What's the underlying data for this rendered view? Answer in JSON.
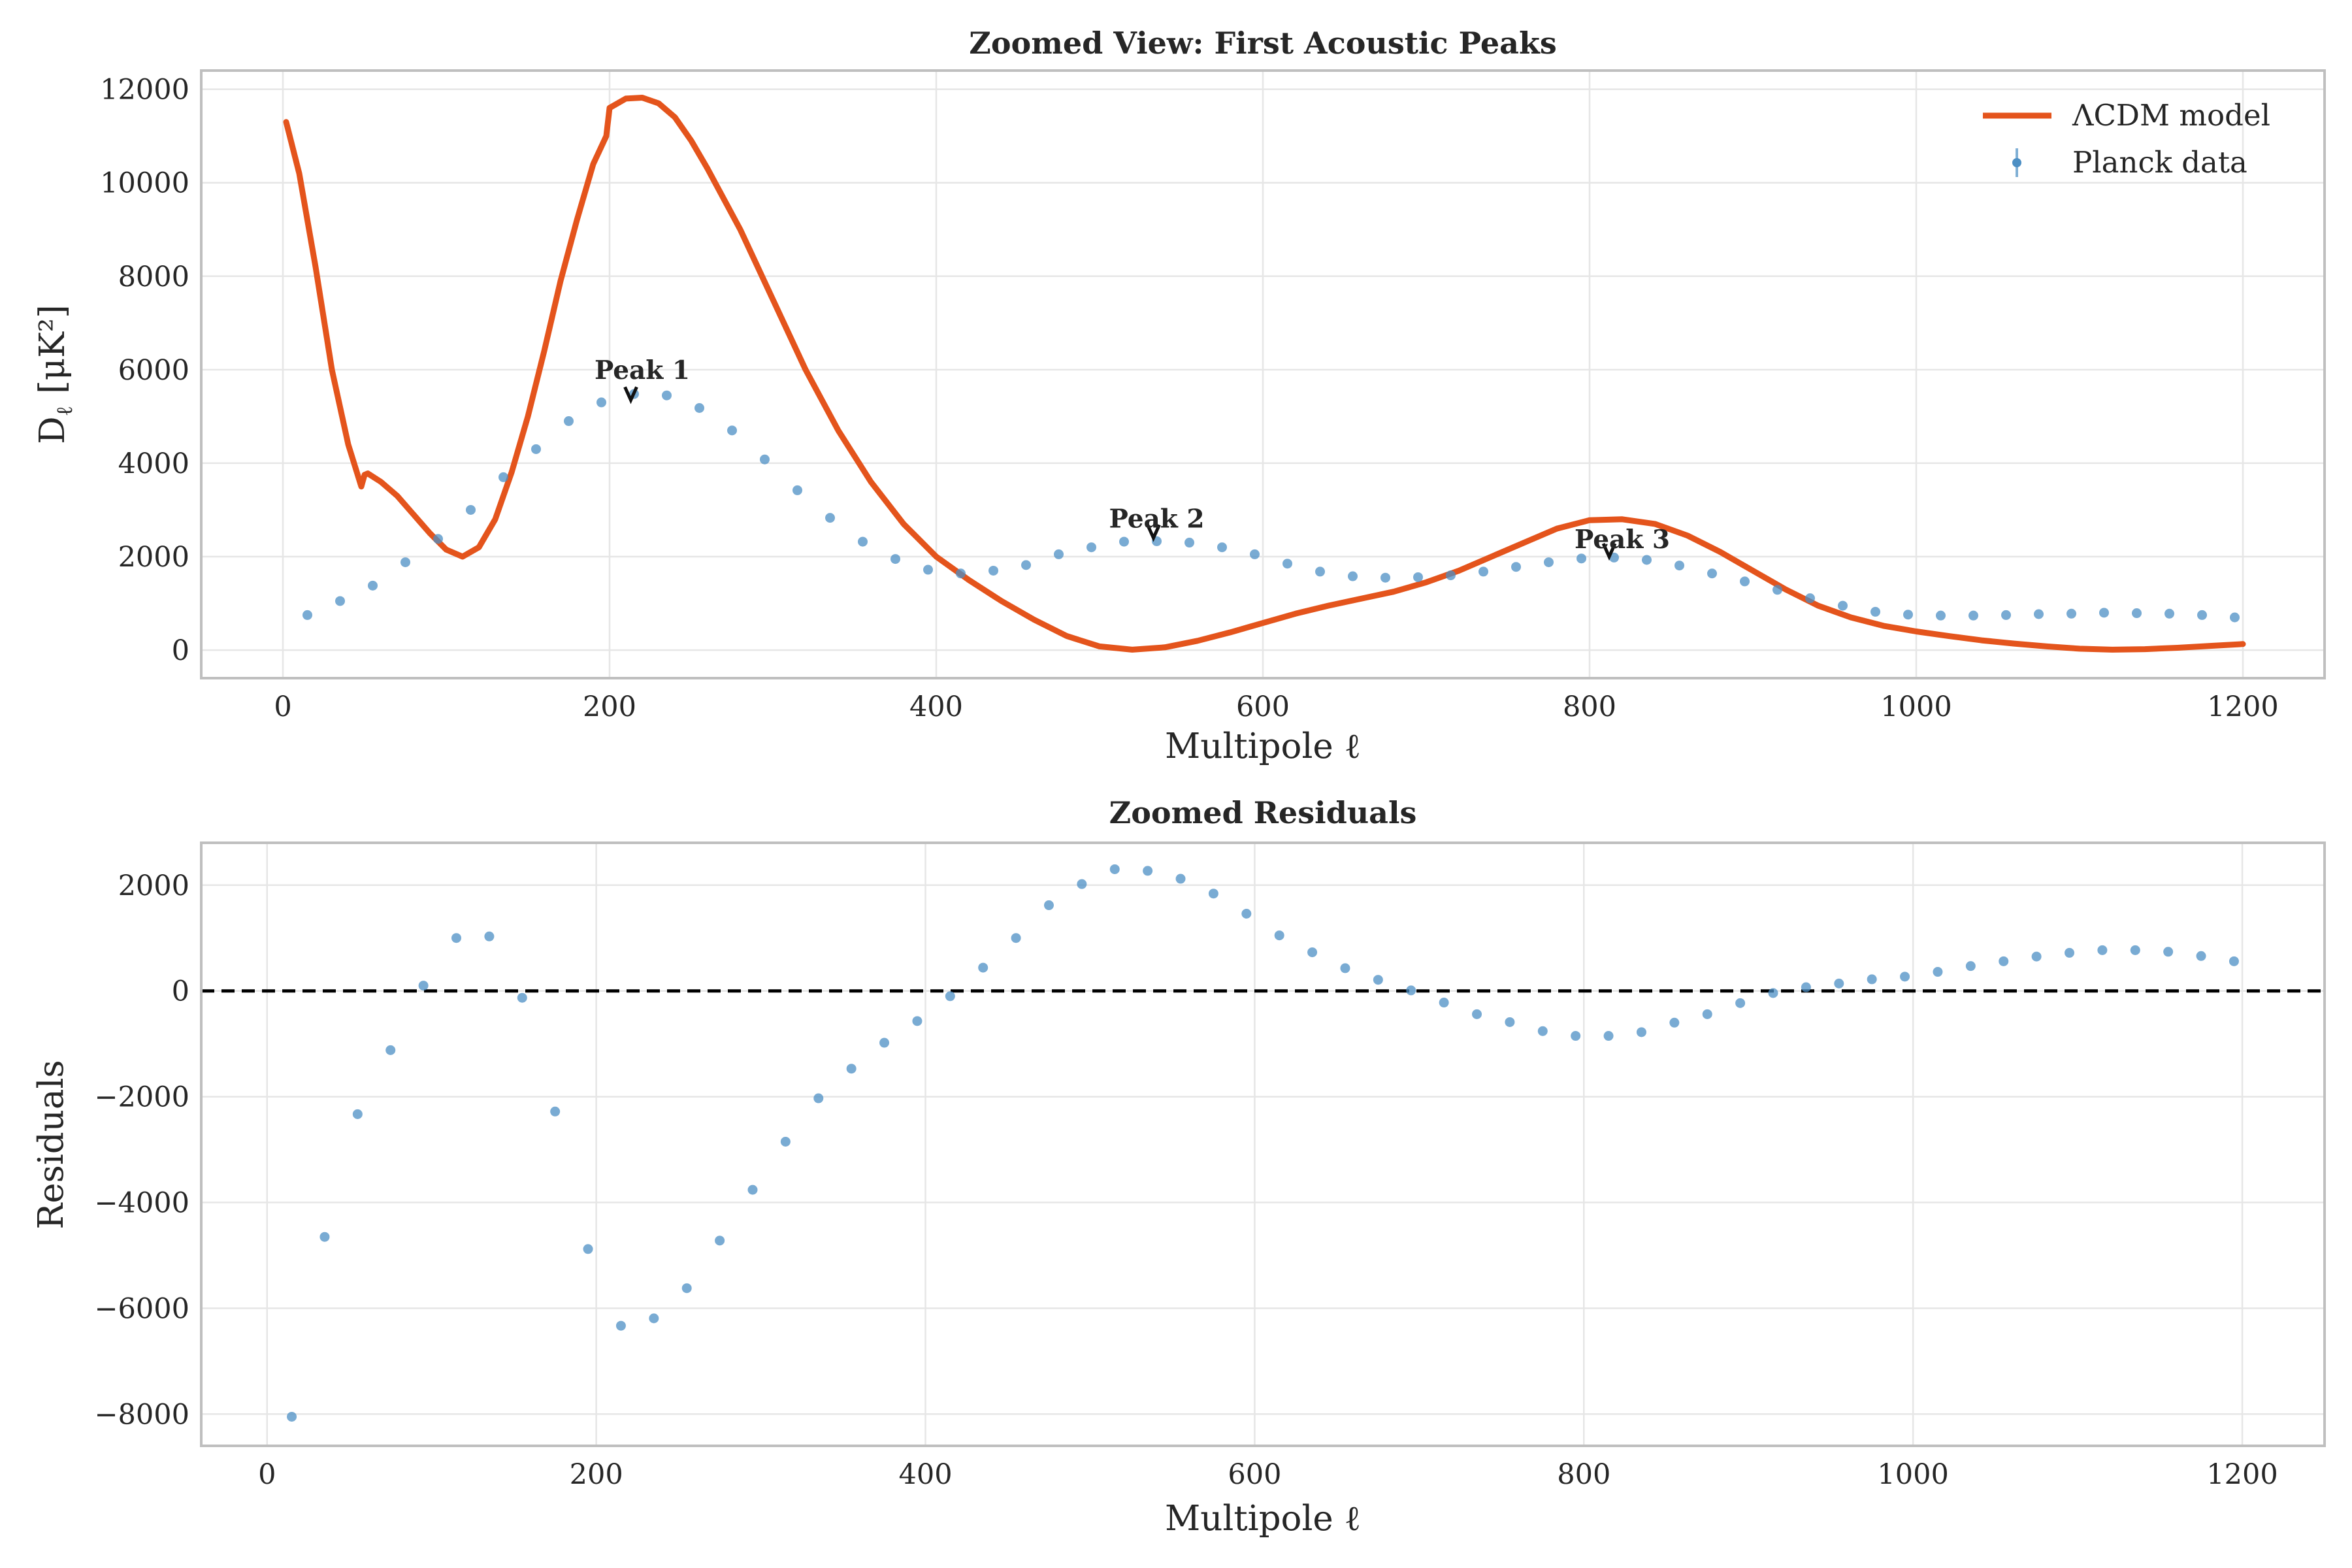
{
  "colors": {
    "model": "#e4541c",
    "data": "#4c8fc4",
    "zero_line": "#000000",
    "grid": "#e6e6e6",
    "frame": "#bfbfbf"
  },
  "chart_data": [
    {
      "type": "line",
      "title": "Zoomed View: First Acoustic Peaks",
      "xlabel": "Multipole ℓ",
      "ylabel": "D_ℓ [μK²]",
      "ylabel_main": "D",
      "ylabel_sub": "ℓ",
      "ylabel_unit": "[μK²]",
      "xlim": [
        -50,
        1250
      ],
      "ylim": [
        -600,
        12400
      ],
      "xticks": [
        0,
        200,
        400,
        600,
        800,
        1000,
        1200
      ],
      "yticks": [
        0,
        2000,
        4000,
        6000,
        8000,
        10000,
        12000
      ],
      "xtick_labels": [
        "0",
        "200",
        "400",
        "600",
        "800",
        "1000",
        "1200"
      ],
      "ytick_labels": [
        "0",
        "2000",
        "4000",
        "6000",
        "8000",
        "10000",
        "12000"
      ],
      "grid": true,
      "legend_position": "top-right",
      "series": [
        {
          "name": "ΛCDM model",
          "kind": "line",
          "x": [
            2,
            10,
            20,
            30,
            40,
            48,
            50,
            52,
            60,
            70,
            80,
            90,
            100,
            110,
            120,
            130,
            140,
            150,
            160,
            170,
            180,
            190,
            198,
            200,
            210,
            220,
            230,
            240,
            250,
            260,
            280,
            300,
            320,
            340,
            360,
            380,
            400,
            420,
            440,
            460,
            480,
            500,
            520,
            540,
            560,
            580,
            600,
            620,
            640,
            660,
            680,
            700,
            720,
            740,
            760,
            780,
            800,
            820,
            840,
            860,
            880,
            900,
            920,
            940,
            960,
            980,
            1000,
            1020,
            1040,
            1060,
            1080,
            1100,
            1120,
            1140,
            1160,
            1180,
            1200
          ],
          "y": [
            11300,
            10200,
            8200,
            6000,
            4400,
            3500,
            3750,
            3780,
            3600,
            3300,
            2900,
            2500,
            2150,
            2000,
            2200,
            2800,
            3800,
            5000,
            6400,
            7900,
            9200,
            10400,
            11000,
            11600,
            11800,
            11820,
            11700,
            11400,
            10900,
            10300,
            9000,
            7500,
            6000,
            4700,
            3600,
            2700,
            2000,
            1500,
            1050,
            650,
            300,
            80,
            10,
            60,
            200,
            380,
            580,
            780,
            950,
            1100,
            1250,
            1450,
            1700,
            2000,
            2300,
            2600,
            2780,
            2800,
            2700,
            2450,
            2100,
            1700,
            1300,
            950,
            700,
            520,
            400,
            300,
            210,
            140,
            80,
            30,
            10,
            20,
            50,
            90,
            130
          ]
        },
        {
          "name": "Planck data",
          "kind": "scatter",
          "x": [
            15,
            35,
            55,
            75,
            95,
            115,
            135,
            155,
            175,
            195,
            215,
            235,
            255,
            275,
            295,
            315,
            335,
            355,
            375,
            395,
            415,
            435,
            455,
            475,
            495,
            515,
            535,
            555,
            575,
            595,
            615,
            635,
            655,
            675,
            695,
            715,
            735,
            755,
            775,
            795,
            815,
            835,
            855,
            875,
            895,
            915,
            935,
            955,
            975,
            995,
            1015,
            1035,
            1055,
            1075,
            1095,
            1115,
            1135,
            1155,
            1175,
            1195
          ],
          "y": [
            750,
            1050,
            1380,
            1880,
            2380,
            3000,
            3700,
            4300,
            4900,
            5300,
            5480,
            5450,
            5180,
            4700,
            4080,
            3420,
            2830,
            2320,
            1950,
            1720,
            1640,
            1700,
            1820,
            2050,
            2200,
            2320,
            2330,
            2300,
            2200,
            2050,
            1850,
            1680,
            1580,
            1550,
            1560,
            1600,
            1680,
            1780,
            1880,
            1960,
            1980,
            1930,
            1810,
            1640,
            1470,
            1290,
            1110,
            950,
            820,
            760,
            740,
            740,
            750,
            770,
            780,
            800,
            790,
            780,
            750,
            700
          ]
        }
      ],
      "annotations": [
        {
          "text": "Peak 1",
          "x": 220,
          "y": 5800,
          "arrow_x": 213,
          "arrow_y": 5350
        },
        {
          "text": "Peak 2",
          "x": 535,
          "y": 2620,
          "arrow_x": 533,
          "arrow_y": 2400
        },
        {
          "text": "Peak 3",
          "x": 820,
          "y": 2180,
          "arrow_x": 812,
          "arrow_y": 2000
        }
      ]
    },
    {
      "type": "scatter",
      "title": "Zoomed Residuals",
      "xlabel": "Multipole ℓ",
      "ylabel": "Residuals",
      "xlim": [
        -40,
        1250
      ],
      "ylim": [
        -8600,
        2800
      ],
      "xticks": [
        0,
        200,
        400,
        600,
        800,
        1000,
        1200
      ],
      "yticks": [
        -8000,
        -6000,
        -4000,
        -2000,
        0,
        2000
      ],
      "xtick_labels": [
        "0",
        "200",
        "400",
        "600",
        "800",
        "1000",
        "1200"
      ],
      "ytick_labels": [
        "−8000",
        "−6000",
        "−4000",
        "−2000",
        "0",
        "2000"
      ],
      "grid": true,
      "reference_line_y": 0,
      "series": [
        {
          "name": "Planck data",
          "x": [
            15,
            35,
            55,
            75,
            95,
            115,
            135,
            155,
            175,
            195,
            215,
            235,
            255,
            275,
            295,
            315,
            335,
            355,
            375,
            395,
            415,
            435,
            455,
            475,
            495,
            515,
            535,
            555,
            575,
            595,
            615,
            635,
            655,
            675,
            695,
            715,
            735,
            755,
            775,
            795,
            815,
            835,
            855,
            875,
            895,
            915,
            935,
            955,
            975,
            995,
            1015,
            1035,
            1055,
            1075,
            1095,
            1115,
            1135,
            1155,
            1175,
            1195
          ],
          "y": [
            -8050,
            -4650,
            -2330,
            -1120,
            100,
            1000,
            1030,
            -130,
            -2280,
            -4880,
            -6330,
            -6190,
            -5620,
            -4720,
            -3760,
            -2850,
            -2030,
            -1470,
            -980,
            -570,
            -100,
            440,
            1000,
            1620,
            2020,
            2300,
            2270,
            2120,
            1840,
            1460,
            1050,
            730,
            430,
            210,
            10,
            -220,
            -440,
            -590,
            -760,
            -850,
            -850,
            -780,
            -600,
            -440,
            -230,
            -40,
            70,
            140,
            220,
            270,
            360,
            470,
            560,
            650,
            720,
            770,
            770,
            740,
            660,
            560
          ]
        }
      ]
    }
  ]
}
